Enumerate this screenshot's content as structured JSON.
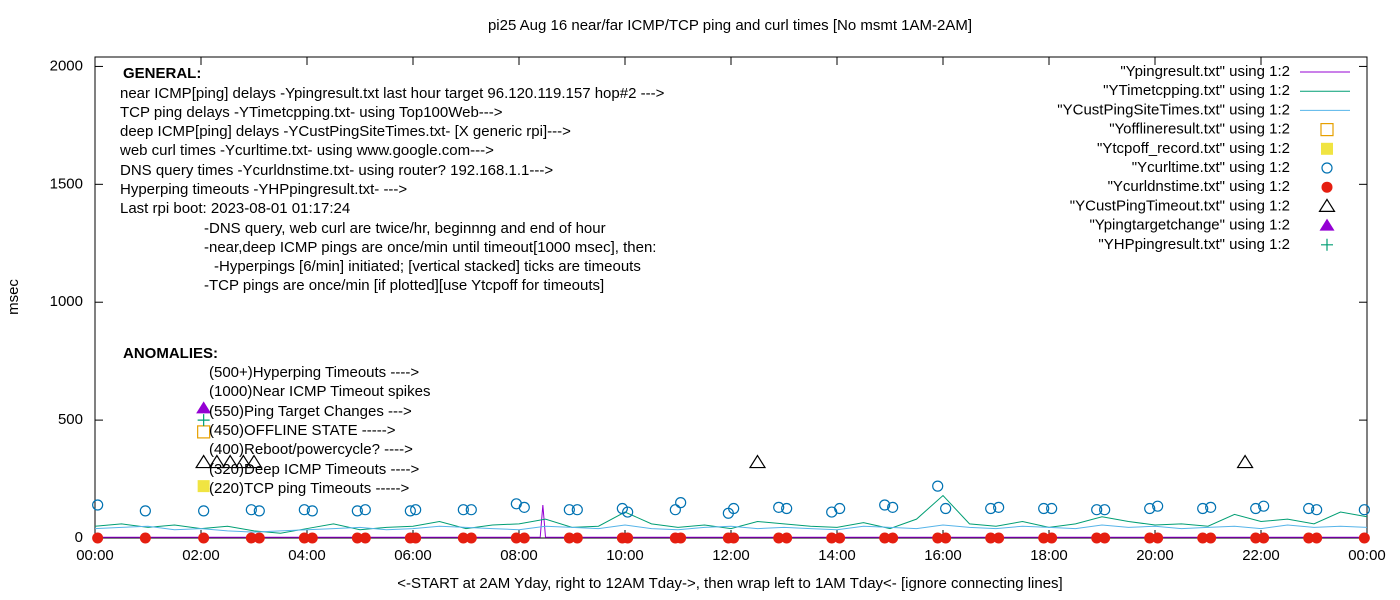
{
  "chart_data": {
    "type": "line",
    "title": "pi25 Aug 16  near/far ICMP/TCP ping and curl times [No msmt 1AM-2AM]",
    "x_label": "<-START at 2AM Yday, right to 12AM Tday->, then wrap left to 1AM Tday<- [ignore connecting lines]",
    "y_label": "msec",
    "xlim": [
      0,
      24
    ],
    "ylim": [
      0,
      2040
    ],
    "xticks": [
      {
        "value": 0,
        "label": "00:00"
      },
      {
        "value": 2,
        "label": "02:00"
      },
      {
        "value": 4,
        "label": "04:00"
      },
      {
        "value": 6,
        "label": "06:00"
      },
      {
        "value": 8,
        "label": "08:00"
      },
      {
        "value": 10,
        "label": "10:00"
      },
      {
        "value": 12,
        "label": "12:00"
      },
      {
        "value": 14,
        "label": "14:00"
      },
      {
        "value": 16,
        "label": "16:00"
      },
      {
        "value": 18,
        "label": "18:00"
      },
      {
        "value": 20,
        "label": "20:00"
      },
      {
        "value": 22,
        "label": "22:00"
      },
      {
        "value": 24,
        "label": "00:00"
      }
    ],
    "yticks": [
      0,
      500,
      1000,
      1500,
      2000
    ],
    "legend": "top-right",
    "annotations": [
      "GENERAL:",
      "near ICMP[ping] delays -Ypingresult.txt last hour target 96.120.119.157 hop#2 --->",
      "TCP ping delays -YTimetcpping.txt- using Top100Web--->",
      "deep ICMP[ping] delays -YCustPingSiteTimes.txt- [X generic rpi]--->",
      "web curl times -Ycurltime.txt- using www.google.com--->",
      "DNS query times -Ycurldnstime.txt- using router? 192.168.1.1--->",
      "Hyperping timeouts -YHPpingresult.txt- --->",
      "Last rpi boot: 2023-08-01 01:17:24",
      "-DNS query, web curl are twice/hr, beginnng and end of hour",
      "-near,deep ICMP pings are once/min until timeout[1000 msec], then:",
      "-Hyperpings [6/min] initiated; [vertical stacked] ticks are timeouts",
      "-TCP pings are once/min [if plotted][use Ytcpoff for timeouts]",
      "ANOMALIES:",
      "(500+)Hyperping Timeouts ---->",
      "(1000)Near ICMP Timeout spikes",
      "(550)Ping Target Changes --->",
      "(450)OFFLINE STATE ----->",
      "(400)Reboot/powercycle? ---->",
      "(320)Deep ICMP Timeouts ---->",
      "(220)TCP ping Timeouts ----->"
    ],
    "series": [
      {
        "name": "\"Ypingresult.txt\" using 1:2",
        "color": "#9400d3",
        "style": "line",
        "x": [
          0,
          2,
          8.4,
          8.45,
          8.5,
          24
        ],
        "values": [
          3,
          3,
          3,
          140,
          3,
          3
        ]
      },
      {
        "name": "\"YTimetcpping.txt\" using 1:2",
        "color": "#009e73",
        "style": "line",
        "x": [
          0,
          0.5,
          1,
          1.5,
          2,
          2.5,
          3,
          3.5,
          4,
          4.5,
          5,
          5.5,
          6,
          6.5,
          7,
          7.5,
          8,
          8.5,
          9,
          9.5,
          10,
          10.5,
          11,
          11.5,
          12,
          12.5,
          13,
          13.5,
          14,
          14.5,
          15,
          15.5,
          16,
          16.5,
          17,
          17.5,
          18,
          18.5,
          19,
          19.5,
          20,
          20.5,
          21,
          21.5,
          22,
          22.5,
          23,
          23.5,
          24
        ],
        "values": [
          50,
          60,
          45,
          55,
          40,
          50,
          30,
          20,
          40,
          60,
          35,
          45,
          50,
          70,
          40,
          55,
          60,
          80,
          45,
          50,
          110,
          60,
          45,
          55,
          40,
          70,
          60,
          50,
          45,
          65,
          40,
          80,
          180,
          60,
          50,
          70,
          45,
          60,
          90,
          70,
          55,
          60,
          50,
          100,
          70,
          80,
          60,
          110,
          90
        ]
      },
      {
        "name": "\"YCustPingSiteTimes.txt\" using 1:2",
        "color": "#56b4e9",
        "style": "line",
        "x": [
          0,
          0.5,
          1,
          1.5,
          2,
          2.5,
          3,
          3.5,
          4,
          4.5,
          5,
          5.5,
          6,
          6.5,
          7,
          7.5,
          8,
          8.5,
          9,
          9.5,
          10,
          10.5,
          11,
          11.5,
          12,
          12.5,
          13,
          13.5,
          14,
          14.5,
          15,
          15.5,
          16,
          16.5,
          17,
          17.5,
          18,
          18.5,
          19,
          19.5,
          20,
          20.5,
          21,
          21.5,
          22,
          22.5,
          23,
          23.5,
          24
        ],
        "values": [
          40,
          45,
          50,
          35,
          40,
          30,
          25,
          30,
          35,
          40,
          45,
          35,
          40,
          50,
          45,
          40,
          35,
          50,
          45,
          40,
          55,
          40,
          35,
          45,
          50,
          40,
          45,
          40,
          35,
          50,
          45,
          40,
          55,
          45,
          40,
          50,
          45,
          40,
          55,
          45,
          50,
          40,
          45,
          50,
          40,
          55,
          45,
          50,
          45
        ]
      },
      {
        "name": "\"Yofflineresult.txt\" using 1:2",
        "color": "#e69f00",
        "style": "points",
        "marker": "square-open",
        "x": [
          2.05
        ],
        "values": [
          450
        ]
      },
      {
        "name": "\"Ytcpoff_record.txt\" using 1:2",
        "color": "#f0e442",
        "style": "points",
        "marker": "square",
        "x": [
          2.05
        ],
        "values": [
          220
        ]
      },
      {
        "name": "\"Ycurltime.txt\" using 1:2",
        "color": "#0072b2",
        "style": "points",
        "marker": "circle-open",
        "x": [
          0.05,
          0.95,
          2.05,
          2.95,
          3.1,
          3.95,
          4.1,
          4.95,
          5.1,
          5.95,
          6.05,
          6.95,
          7.1,
          7.95,
          8.1,
          8.95,
          9.1,
          9.95,
          10.05,
          10.95,
          11.05,
          11.95,
          12.05,
          12.9,
          13.05,
          13.9,
          14.05,
          14.9,
          15.05,
          15.9,
          16.05,
          16.9,
          17.05,
          17.9,
          18.05,
          18.9,
          19.05,
          19.9,
          20.05,
          20.9,
          21.05,
          21.9,
          22.05,
          22.9,
          23.05,
          23.95
        ],
        "values": [
          140,
          115,
          115,
          120,
          115,
          120,
          115,
          115,
          120,
          115,
          120,
          120,
          120,
          145,
          130,
          120,
          120,
          125,
          110,
          120,
          150,
          105,
          125,
          130,
          125,
          110,
          125,
          140,
          130,
          220,
          125,
          125,
          130,
          125,
          125,
          120,
          120,
          125,
          135,
          125,
          130,
          125,
          135,
          125,
          120,
          120
        ]
      },
      {
        "name": "\"Ycurldnstime.txt\" using 1:2",
        "color": "#e51e10",
        "style": "points",
        "marker": "circle",
        "x": [
          0.05,
          0.95,
          2.05,
          2.95,
          3.1,
          3.95,
          4.1,
          4.95,
          5.1,
          5.95,
          6.05,
          6.95,
          7.1,
          7.95,
          8.1,
          8.95,
          9.1,
          9.95,
          10.05,
          10.95,
          11.05,
          11.95,
          12.05,
          12.9,
          13.05,
          13.9,
          14.05,
          14.9,
          15.05,
          15.9,
          16.05,
          16.9,
          17.05,
          17.9,
          18.05,
          18.9,
          19.05,
          19.9,
          20.05,
          20.9,
          21.05,
          21.9,
          22.05,
          22.9,
          23.05,
          23.95
        ],
        "values": [
          0,
          0,
          0,
          0,
          0,
          0,
          0,
          0,
          0,
          0,
          0,
          0,
          0,
          0,
          0,
          0,
          0,
          0,
          0,
          0,
          0,
          0,
          0,
          0,
          0,
          0,
          0,
          0,
          0,
          0,
          0,
          0,
          0,
          0,
          0,
          0,
          0,
          0,
          0,
          0,
          0,
          0,
          0,
          0,
          0,
          0
        ]
      },
      {
        "name": "\"YCustPingTimeout.txt\" using 1:2",
        "color": "#000000",
        "style": "points",
        "marker": "triangle-open",
        "x": [
          2.05,
          2.3,
          2.55,
          2.8,
          3.0,
          12.5,
          21.7
        ],
        "values": [
          320,
          320,
          320,
          320,
          320,
          320,
          320
        ]
      },
      {
        "name": "\"Ypingtargetchange\" using 1:2",
        "color": "#9400d3",
        "style": "points",
        "marker": "triangle",
        "x": [
          2.05
        ],
        "values": [
          550
        ]
      },
      {
        "name": "\"YHPpingresult.txt\" using 1:2",
        "color": "#009e73",
        "style": "points",
        "marker": "plus",
        "x": [
          2.05
        ],
        "values": [
          500
        ]
      }
    ]
  }
}
